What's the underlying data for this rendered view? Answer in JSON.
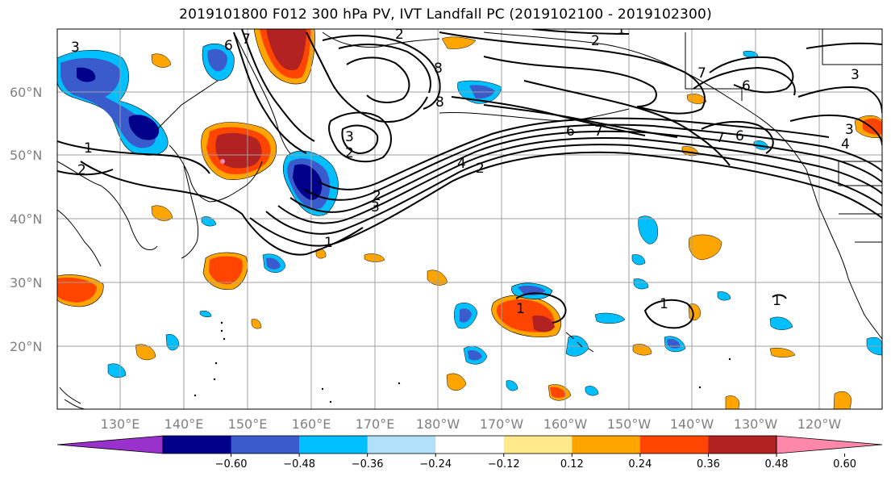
{
  "title": "2019101800 F012 300 hPa PV, IVT Landfall PC (2019102100 - 2019102300)",
  "lat_labels": [
    "60°N",
    "50°N",
    "40°N",
    "30°N",
    "20°N"
  ],
  "lon_labels": [
    "130°E",
    "140°E",
    "150°E",
    "160°E",
    "170°E",
    "180°W",
    "170°W",
    "160°W",
    "150°W",
    "140°W",
    "130°W",
    "120°W"
  ],
  "colorbar": {
    "colors": [
      "#9932cc",
      "#00008b",
      "#3a5bcc",
      "#00bfff",
      "#b0e0fa",
      "#ffffff",
      "#ffe98a",
      "#ffa500",
      "#ff4500",
      "#b22222",
      "#ff88aa"
    ],
    "tick_labels": [
      "−0.60",
      "−0.48",
      "−0.36",
      "−0.24",
      "−0.12",
      "0.12",
      "0.24",
      "0.36",
      "0.48",
      "0.60"
    ]
  },
  "contour_labels": [
    "3",
    "6",
    "7",
    "2",
    "1",
    "8",
    "8",
    "6",
    "2",
    "1",
    "2",
    "3",
    "2",
    "2",
    "7",
    "6",
    "3",
    "7",
    "6",
    "4",
    "7",
    "3",
    "3",
    "4",
    "2",
    "1",
    "1",
    "1",
    "1"
  ],
  "shading_colors": {
    "dark_red": "#b22222",
    "red": "#ff4500",
    "orange": "#ffa500",
    "yellow": "#ffe98a",
    "light_blue": "#b0e0fa",
    "cyan": "#00bfff",
    "blue": "#3a5bcc",
    "navy": "#00008b",
    "pink": "#ff88aa"
  }
}
